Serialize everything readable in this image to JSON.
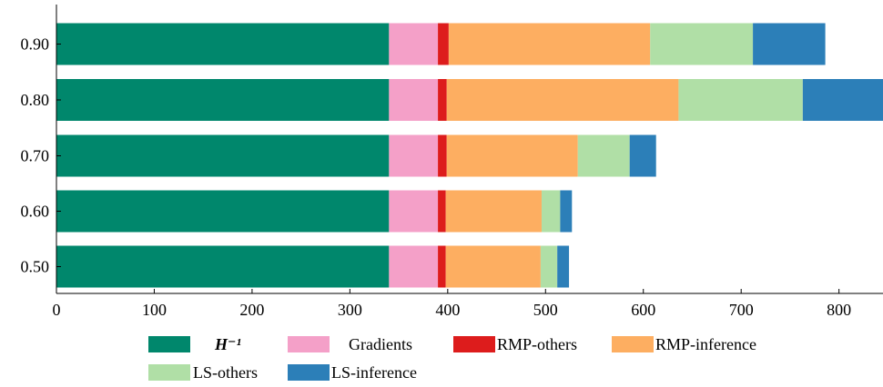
{
  "chart_data": {
    "type": "bar",
    "orientation": "horizontal",
    "stacked": true,
    "categories": [
      "0.50",
      "0.60",
      "0.70",
      "0.80",
      "0.90"
    ],
    "series": [
      {
        "name": "H⁻¹",
        "color": "#00876c",
        "values": [
          340,
          340,
          340,
          340,
          340
        ]
      },
      {
        "name": "Gradients",
        "color": "#f4a0c8",
        "values": [
          50,
          50,
          50,
          50,
          50
        ]
      },
      {
        "name": "RMP-others",
        "color": "#dd1c1c",
        "values": [
          8,
          8,
          9,
          9,
          11
        ]
      },
      {
        "name": "RMP-inference",
        "color": "#fdae61",
        "values": [
          97,
          98,
          134,
          237,
          206
        ]
      },
      {
        "name": "LS-others",
        "color": "#b0dfa6",
        "values": [
          17,
          19,
          53,
          127,
          105
        ]
      },
      {
        "name": "LS-inference",
        "color": "#2c7fb8",
        "values": [
          12,
          12,
          27,
          83,
          74
        ]
      }
    ],
    "xlim": [
      0,
      845
    ],
    "xticks": [
      "0",
      "100",
      "200",
      "300",
      "400",
      "500",
      "600",
      "700",
      "800"
    ],
    "xtick_values": [
      0,
      100,
      200,
      300,
      400,
      500,
      600,
      700,
      800
    ],
    "grid": false,
    "legend_placement": "bottom",
    "title": "",
    "xlabel": "",
    "ylabel": ""
  }
}
